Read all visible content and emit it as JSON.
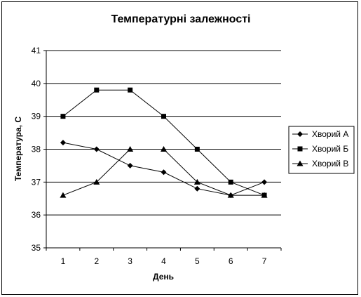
{
  "chart_data": {
    "type": "line",
    "title": "Температурні залежності",
    "xlabel": "День",
    "ylabel": "Температура, С",
    "x": [
      1,
      2,
      3,
      4,
      5,
      6,
      7
    ],
    "ylim": [
      35,
      41
    ],
    "yticks": [
      35,
      36,
      37,
      38,
      39,
      40,
      41
    ],
    "grid": "horizontal",
    "legend": "right",
    "series": [
      {
        "name": "Хворий А",
        "marker": "diamond",
        "values": [
          38.2,
          38.0,
          37.5,
          37.3,
          36.8,
          36.6,
          37.0
        ]
      },
      {
        "name": "Хворий Б",
        "marker": "square",
        "values": [
          39.0,
          39.8,
          39.8,
          39.0,
          38.0,
          37.0,
          36.6
        ]
      },
      {
        "name": "Хворий В",
        "marker": "triangle",
        "values": [
          36.6,
          37.0,
          38.0,
          38.0,
          37.0,
          36.6,
          36.6
        ]
      }
    ]
  }
}
